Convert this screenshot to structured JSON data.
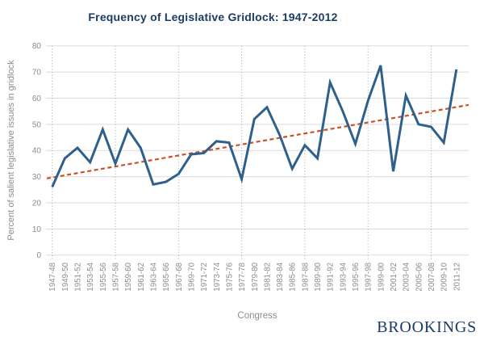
{
  "title": "Frequency of Legislative Gridlock: 1947-2012",
  "brand": "BROOKINGS",
  "colors": {
    "title_text": "#1c3c64",
    "axis_text": "#8b8b8b",
    "gridline": "#dbdbdb",
    "grid_dotted": "#a3a3a3",
    "line": "#2f608d",
    "trend": "#cc5127",
    "brand_text": "#1a3b63",
    "background": "#ffffff"
  },
  "chart_data": {
    "type": "line",
    "title": "Frequency of Legislative Gridlock: 1947-2012",
    "xlabel": "Congress",
    "ylabel": "Percent of salient legislative issues in gridlock",
    "ylim": [
      0,
      80
    ],
    "ytick_step": 10,
    "grid": "horizontal-solid, vertical-dotted-every-5th-category",
    "grid_vertical_every": 5,
    "legend_position": "none",
    "categories": [
      "1947-48",
      "1949-50",
      "1951-52",
      "1953-54",
      "1955-56",
      "1957-58",
      "1959-60",
      "1961-62",
      "1963-64",
      "1965-66",
      "1967-68",
      "1969-70",
      "1971-72",
      "1973-74",
      "1975-76",
      "1977-78",
      "1979-80",
      "1981-82",
      "1983-84",
      "1985-86",
      "1987-88",
      "1989-90",
      "1991-92",
      "1993-94",
      "1995-96",
      "1997-98",
      "1999-00",
      "2001-02",
      "2003-04",
      "2005-06",
      "2007-08",
      "2009-10",
      "2011-12"
    ],
    "series": [
      {
        "name": "Percent of salient legislative issues in gridlock",
        "type": "line",
        "color": "#2f608d",
        "values": [
          26,
          37,
          41,
          35.5,
          48,
          35,
          48,
          41,
          27,
          28,
          31,
          38.5,
          39,
          43.5,
          43,
          29,
          52,
          56.5,
          46,
          33,
          42,
          37,
          66,
          55,
          42.5,
          59,
          72.5,
          32,
          61,
          50,
          49,
          43,
          71
        ]
      },
      {
        "name": "Linear trend",
        "type": "dashed-trend-line",
        "color": "#cc5127",
        "start_value": 29.3,
        "end_value": 57.4
      }
    ]
  }
}
